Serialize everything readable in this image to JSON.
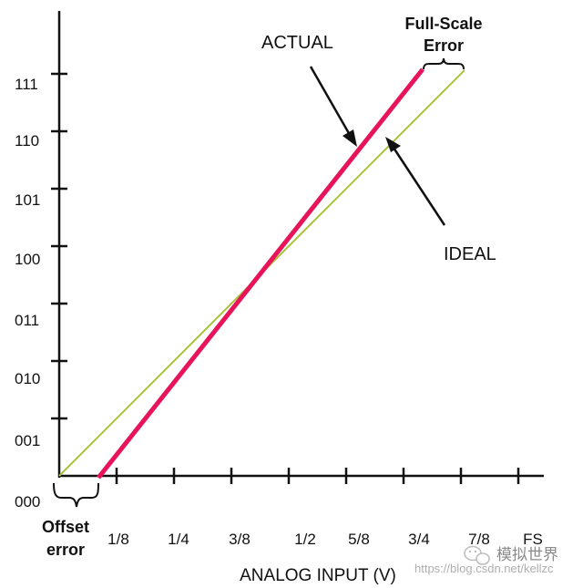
{
  "diagram": {
    "y_codes": [
      "000",
      "001",
      "010",
      "011",
      "100",
      "101",
      "110",
      "111"
    ],
    "x_ticks": [
      "1/8",
      "1/4",
      "3/8",
      "1/2",
      "5/8",
      "3/4",
      "7/8",
      "FS"
    ],
    "x_axis_label": "ANALOG INPUT (V)",
    "labels": {
      "actual": "ACTUAL",
      "ideal": "IDEAL",
      "full_scale_line1": "Full-Scale",
      "full_scale_line2": "Error",
      "offset_line1": "Offset",
      "offset_line2": "error"
    },
    "colors": {
      "actual": "#e8145a",
      "ideal": "#a6c23a",
      "axis": "#111111"
    }
  },
  "watermark": {
    "brand": "模拟世界",
    "url": "https://blog.csdn.net/kellzc",
    "icon": "wechat-icon"
  }
}
